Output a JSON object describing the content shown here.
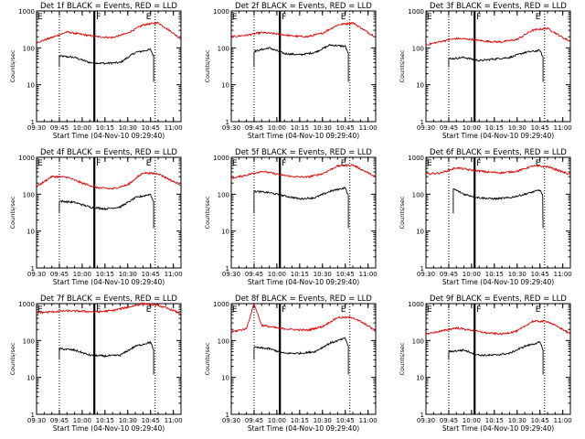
{
  "x_tick_labels": [
    "09:30",
    "09:45",
    "10:00",
    "10:15",
    "10:30",
    "10:45",
    "11:00"
  ],
  "y_tick_labels": [
    "1",
    "10",
    "100",
    "1000"
  ],
  "y_axis_label": "Counts/sec",
  "x_axis_label": "Start Time (04-Nov-10 09:29:40)",
  "marker_labels": [
    "E",
    "F",
    "E"
  ],
  "colors": {
    "events": "#000000",
    "lld": "#e00000"
  },
  "chart_data": [
    {
      "type": "line",
      "title": "Det 1f BLACK = Events, RED = LLD",
      "xlabel": "Start Time (04-Nov-10 09:29:40)",
      "ylabel": "Counts/sec",
      "ylim": [
        1,
        1000
      ],
      "xlim": [
        "09:30",
        "11:05"
      ],
      "yscale": "log",
      "series": [
        {
          "name": "Events",
          "x": [
            "09:45",
            "09:55",
            "10:05",
            "10:15",
            "10:25",
            "10:35",
            "10:45",
            "10:47"
          ],
          "values": [
            60,
            55,
            40,
            38,
            40,
            75,
            90,
            60
          ]
        },
        {
          "name": "LLD",
          "x": [
            "09:30",
            "09:40",
            "09:50",
            "10:00",
            "10:10",
            "10:20",
            "10:30",
            "10:40",
            "10:50",
            "11:00",
            "11:05"
          ],
          "values": [
            140,
            190,
            270,
            230,
            200,
            190,
            250,
            420,
            480,
            250,
            170
          ]
        }
      ]
    },
    {
      "type": "line",
      "title": "Det 2f BLACK = Events, RED = LLD",
      "xlabel": "Start Time (04-Nov-10 09:29:40)",
      "ylabel": "Counts/sec",
      "ylim": [
        1,
        1000
      ],
      "xlim": [
        "09:30",
        "11:05"
      ],
      "yscale": "log",
      "series": [
        {
          "name": "Events",
          "x": [
            "09:45",
            "09:55",
            "10:05",
            "10:15",
            "10:25",
            "10:35",
            "10:45",
            "10:47"
          ],
          "values": [
            80,
            100,
            70,
            65,
            75,
            120,
            110,
            70
          ]
        },
        {
          "name": "LLD",
          "x": [
            "09:30",
            "09:40",
            "09:50",
            "10:00",
            "10:10",
            "10:20",
            "10:30",
            "10:40",
            "10:50",
            "11:00",
            "11:05"
          ],
          "values": [
            200,
            220,
            260,
            240,
            210,
            200,
            250,
            420,
            480,
            260,
            200
          ]
        }
      ]
    },
    {
      "type": "line",
      "title": "Det 3f BLACK = Events, RED = LLD",
      "xlabel": "Start Time (04-Nov-10 09:29:40)",
      "ylabel": "Counts/sec",
      "ylim": [
        1,
        1000
      ],
      "xlim": [
        "09:30",
        "11:05"
      ],
      "yscale": "log",
      "series": [
        {
          "name": "Events",
          "x": [
            "09:45",
            "09:55",
            "10:05",
            "10:15",
            "10:25",
            "10:35",
            "10:45",
            "10:47"
          ],
          "values": [
            50,
            55,
            45,
            50,
            55,
            75,
            85,
            55
          ]
        },
        {
          "name": "LLD",
          "x": [
            "09:30",
            "09:40",
            "09:50",
            "10:00",
            "10:10",
            "10:20",
            "10:30",
            "10:40",
            "10:50",
            "11:00",
            "11:05"
          ],
          "values": [
            120,
            150,
            180,
            170,
            150,
            145,
            170,
            300,
            340,
            190,
            150
          ]
        }
      ]
    },
    {
      "type": "line",
      "title": "Det 4f BLACK = Events, RED = LLD",
      "xlabel": "Start Time (04-Nov-10 09:29:40)",
      "ylabel": "Counts/sec",
      "ylim": [
        1,
        1000
      ],
      "xlim": [
        "09:30",
        "11:05"
      ],
      "yscale": "log",
      "series": [
        {
          "name": "Events",
          "x": [
            "09:45",
            "09:55",
            "10:05",
            "10:15",
            "10:25",
            "10:35",
            "10:45",
            "10:47"
          ],
          "values": [
            65,
            60,
            45,
            40,
            45,
            80,
            100,
            60
          ]
        },
        {
          "name": "LLD",
          "x": [
            "09:30",
            "09:40",
            "09:50",
            "10:00",
            "10:10",
            "10:20",
            "10:30",
            "10:40",
            "10:50",
            "11:00",
            "11:05"
          ],
          "values": [
            160,
            300,
            290,
            200,
            150,
            140,
            180,
            380,
            360,
            220,
            180
          ]
        }
      ]
    },
    {
      "type": "line",
      "title": "Det 5f BLACK = Events, RED = LLD",
      "xlabel": "Start Time (04-Nov-10 09:29:40)",
      "ylabel": "Counts/sec",
      "ylim": [
        1,
        1000
      ],
      "xlim": [
        "09:30",
        "11:05"
      ],
      "yscale": "log",
      "series": [
        {
          "name": "Events",
          "x": [
            "09:45",
            "09:55",
            "10:05",
            "10:15",
            "10:25",
            "10:35",
            "10:45",
            "10:47"
          ],
          "values": [
            120,
            110,
            90,
            75,
            80,
            120,
            150,
            90
          ]
        },
        {
          "name": "LLD",
          "x": [
            "09:30",
            "09:40",
            "09:50",
            "10:00",
            "10:10",
            "10:20",
            "10:30",
            "10:40",
            "10:50",
            "11:00",
            "11:05"
          ],
          "values": [
            270,
            330,
            420,
            350,
            300,
            290,
            360,
            580,
            620,
            380,
            290
          ]
        }
      ]
    },
    {
      "type": "line",
      "title": "Det 6f BLACK = Events, RED = LLD",
      "xlabel": "Start Time (04-Nov-10 09:29:40)",
      "ylabel": "Counts/sec",
      "ylim": [
        1,
        1000
      ],
      "xlim": [
        "09:30",
        "11:05"
      ],
      "yscale": "log",
      "series": [
        {
          "name": "Events",
          "x": [
            "09:48",
            "09:55",
            "10:05",
            "10:15",
            "10:25",
            "10:35",
            "10:45",
            "10:47"
          ],
          "values": [
            140,
            100,
            80,
            75,
            80,
            100,
            130,
            90
          ]
        },
        {
          "name": "LLD",
          "x": [
            "09:30",
            "09:40",
            "09:50",
            "10:00",
            "10:10",
            "10:20",
            "10:30",
            "10:40",
            "10:50",
            "11:00",
            "11:05"
          ],
          "values": [
            350,
            380,
            520,
            450,
            400,
            380,
            420,
            580,
            560,
            400,
            340
          ]
        }
      ]
    },
    {
      "type": "line",
      "title": "Det 7f BLACK = Events, RED = LLD",
      "xlabel": "Start Time (04-Nov-10 09:29:40)",
      "ylabel": "Counts/sec",
      "ylim": [
        1,
        1000
      ],
      "xlim": [
        "09:30",
        "11:05"
      ],
      "yscale": "log",
      "series": [
        {
          "name": "Events",
          "x": [
            "09:45",
            "09:55",
            "10:05",
            "10:15",
            "10:25",
            "10:35",
            "10:45",
            "10:47"
          ],
          "values": [
            60,
            55,
            40,
            38,
            40,
            70,
            90,
            55
          ]
        },
        {
          "name": "LLD",
          "x": [
            "09:30",
            "09:40",
            "09:50",
            "10:00",
            "10:10",
            "10:20",
            "10:30",
            "10:40",
            "10:50",
            "11:00",
            "11:05"
          ],
          "values": [
            560,
            600,
            640,
            620,
            600,
            650,
            800,
            1000,
            900,
            650,
            520
          ]
        }
      ]
    },
    {
      "type": "line",
      "title": "Det 8f BLACK = Events, RED = LLD",
      "xlabel": "Start Time (04-Nov-10 09:29:40)",
      "ylabel": "Counts/sec",
      "ylim": [
        1,
        1000
      ],
      "xlim": [
        "09:30",
        "11:05"
      ],
      "yscale": "log",
      "series": [
        {
          "name": "Events",
          "x": [
            "09:45",
            "09:55",
            "10:05",
            "10:15",
            "10:25",
            "10:35",
            "10:45",
            "10:47"
          ],
          "values": [
            65,
            60,
            45,
            45,
            50,
            85,
            115,
            70
          ]
        },
        {
          "name": "LLD",
          "x": [
            "09:30",
            "09:40",
            "09:45",
            "09:50",
            "10:00",
            "10:10",
            "10:20",
            "10:30",
            "10:40",
            "10:50",
            "11:00",
            "11:05"
          ],
          "values": [
            170,
            210,
            1000,
            260,
            220,
            200,
            190,
            240,
            420,
            420,
            250,
            180
          ]
        }
      ]
    },
    {
      "type": "line",
      "title": "Det 9f BLACK = Events, RED = LLD",
      "xlabel": "Start Time (04-Nov-10 09:29:40)",
      "ylabel": "Counts/sec",
      "ylim": [
        1,
        1000
      ],
      "xlim": [
        "09:30",
        "11:05"
      ],
      "yscale": "log",
      "series": [
        {
          "name": "Events",
          "x": [
            "09:45",
            "09:55",
            "10:05",
            "10:15",
            "10:25",
            "10:35",
            "10:45",
            "10:47"
          ],
          "values": [
            50,
            55,
            40,
            40,
            45,
            70,
            90,
            55
          ]
        },
        {
          "name": "LLD",
          "x": [
            "09:30",
            "09:40",
            "09:50",
            "10:00",
            "10:10",
            "10:20",
            "10:30",
            "10:40",
            "10:50",
            "11:00",
            "11:05"
          ],
          "values": [
            150,
            180,
            220,
            190,
            160,
            150,
            180,
            330,
            330,
            200,
            150
          ]
        }
      ]
    }
  ]
}
